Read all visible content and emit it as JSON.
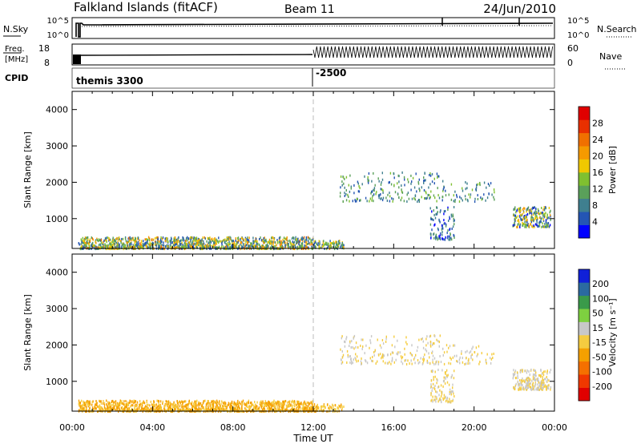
{
  "header": {
    "station": "Falkland Islands (fitACF)",
    "beam": "Beam 11",
    "date": "24/Jun/2010"
  },
  "summary_panels": {
    "nsky": {
      "label": "N.Sky",
      "ticks": [
        "10^5",
        "10^0"
      ]
    },
    "nsearch": {
      "label": "N.Search",
      "ticks": [
        "10^5",
        "10^0"
      ]
    },
    "freq": {
      "label_line1": "Freq.",
      "label_line2": "[MHz]",
      "ticks": [
        "18",
        "8"
      ]
    },
    "nave": {
      "label": "Nave",
      "ticks": [
        "60",
        "0"
      ]
    },
    "cpid": {
      "label": "CPID",
      "segments": [
        "themis 3300",
        "-2500"
      ]
    }
  },
  "colors": {
    "power_scale": [
      "#0000ff",
      "#2455b4",
      "#3f7f8f",
      "#5aa05a",
      "#7fc030",
      "#f0c800",
      "#f59a00",
      "#f07000",
      "#e83000",
      "#e00000"
    ],
    "velocity_scale": [
      "#e00000",
      "#f03800",
      "#f57000",
      "#f5a000",
      "#f5cc40",
      "#c8c8c8",
      "#7ed040",
      "#3a9a4a",
      "#2b6aa0",
      "#1020d8"
    ]
  },
  "chart_data": [
    {
      "type": "heatmap",
      "name": "power",
      "ylabel": "Slant Range [km]",
      "xlim": [
        0,
        24
      ],
      "ylim": [
        180,
        4500
      ],
      "yticks": [
        "1000",
        "2000",
        "3000",
        "4000"
      ],
      "xticks": [
        "00:00",
        "04:00",
        "08:00",
        "12:00",
        "16:00",
        "20:00",
        "00:00"
      ],
      "colorbar": {
        "label": "Power [dB]",
        "ticks": [
          "4",
          "8",
          "12",
          "16",
          "20",
          "24",
          "28"
        ],
        "range": [
          0,
          30
        ]
      },
      "marker_time": 12,
      "regions": [
        {
          "t": [
            0.3,
            12.0
          ],
          "r": [
            200,
            520
          ],
          "value_range": [
            3,
            22
          ],
          "density": 55
        },
        {
          "t": [
            12.0,
            13.5
          ],
          "r": [
            200,
            420
          ],
          "value_range": [
            3,
            20
          ],
          "density": 30
        },
        {
          "t": [
            13.3,
            18.5
          ],
          "r": [
            1500,
            2300
          ],
          "value_range": [
            3,
            14
          ],
          "density": 20
        },
        {
          "t": [
            17.8,
            19.0
          ],
          "r": [
            450,
            1350
          ],
          "value_range": [
            2,
            12
          ],
          "density": 45
        },
        {
          "t": [
            18.5,
            21.0
          ],
          "r": [
            1500,
            2050
          ],
          "value_range": [
            4,
            14
          ],
          "density": 12
        },
        {
          "t": [
            21.9,
            23.8
          ],
          "r": [
            800,
            1350
          ],
          "value_range": [
            2,
            20
          ],
          "density": 60
        }
      ]
    },
    {
      "type": "heatmap",
      "name": "velocity",
      "ylabel": "Slant Range [km]",
      "xlabel": "Time UT",
      "xlim": [
        0,
        24
      ],
      "ylim": [
        180,
        4500
      ],
      "yticks": [
        "1000",
        "2000",
        "3000",
        "4000"
      ],
      "xticks": [
        "00:00",
        "04:00",
        "08:00",
        "12:00",
        "16:00",
        "20:00",
        "00:00"
      ],
      "colorbar": {
        "label": "Velocity [m s⁻¹]",
        "ticks": [
          "-200",
          "-100",
          "-50",
          "-15",
          "15",
          "50",
          "100",
          "200"
        ],
        "range": [
          -250,
          250
        ]
      },
      "marker_time": 12,
      "regions": [
        {
          "t": [
            0.3,
            12.0
          ],
          "r": [
            200,
            500
          ],
          "value_range": [
            -90,
            -20
          ],
          "density": 55
        },
        {
          "t": [
            12.0,
            13.5
          ],
          "r": [
            200,
            400
          ],
          "value_range": [
            -70,
            -15
          ],
          "density": 25
        },
        {
          "t": [
            13.3,
            18.5
          ],
          "r": [
            1500,
            2300
          ],
          "value_range": [
            -12,
            12
          ],
          "density": 20
        },
        {
          "t": [
            17.8,
            19.0
          ],
          "r": [
            450,
            1350
          ],
          "value_range": [
            -12,
            12
          ],
          "density": 45
        },
        {
          "t": [
            18.5,
            21.0
          ],
          "r": [
            1500,
            2050
          ],
          "value_range": [
            -12,
            12
          ],
          "density": 12
        },
        {
          "t": [
            21.9,
            23.8
          ],
          "r": [
            800,
            1350
          ],
          "value_range": [
            -12,
            12
          ],
          "density": 60
        }
      ]
    }
  ]
}
